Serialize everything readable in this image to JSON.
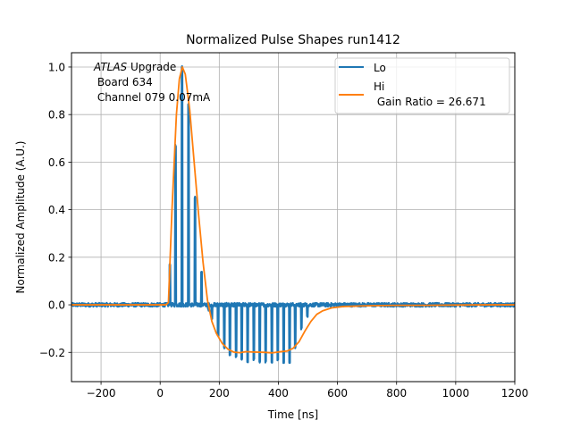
{
  "chart_data": {
    "type": "line",
    "title": "Normalized Pulse Shapes run1412",
    "xlabel": "Time [ns]",
    "ylabel": "Normalized Amplitude (A.U.)",
    "xlim": [
      -300,
      1200
    ],
    "ylim": [
      -0.323,
      1.06
    ],
    "xticks": [
      -200,
      0,
      200,
      400,
      600,
      800,
      1000,
      1200
    ],
    "xtick_labels": [
      "−200",
      "0",
      "200",
      "400",
      "600",
      "800",
      "1000",
      "1200"
    ],
    "yticks": [
      -0.2,
      0.0,
      0.2,
      0.4,
      0.6,
      0.8,
      1.0
    ],
    "ytick_labels": [
      "−0.2",
      "0.0",
      "0.2",
      "0.4",
      "0.6",
      "0.8",
      "1.0"
    ],
    "grid": true,
    "legend_position": "top-right",
    "annotation": {
      "italic": "ATLAS",
      "line1_rest": " Upgrade",
      "line2": " Board 634",
      "line3": " Channel 079 0.07mA"
    },
    "series": [
      {
        "name": "Lo",
        "color": "#1f77b4",
        "kind": "spikes",
        "baseline": 0.0,
        "noise": 0.008,
        "x_range": [
          -300,
          1200
        ],
        "spikes": [
          {
            "x": 33,
            "y": 0.17
          },
          {
            "x": 52,
            "y": 0.67
          },
          {
            "x": 74,
            "y": 1.0
          },
          {
            "x": 96,
            "y": 0.84
          },
          {
            "x": 118,
            "y": 0.45
          },
          {
            "x": 140,
            "y": 0.14
          },
          {
            "x": 163,
            "y": -0.02
          },
          {
            "x": 175,
            "y": -0.06
          },
          {
            "x": 196,
            "y": -0.13
          },
          {
            "x": 217,
            "y": -0.18
          },
          {
            "x": 236,
            "y": -0.21
          },
          {
            "x": 257,
            "y": -0.22
          },
          {
            "x": 276,
            "y": -0.23
          },
          {
            "x": 296,
            "y": -0.24
          },
          {
            "x": 317,
            "y": -0.23
          },
          {
            "x": 337,
            "y": -0.24
          },
          {
            "x": 357,
            "y": -0.24
          },
          {
            "x": 378,
            "y": -0.24
          },
          {
            "x": 398,
            "y": -0.23
          },
          {
            "x": 418,
            "y": -0.24
          },
          {
            "x": 438,
            "y": -0.24
          },
          {
            "x": 457,
            "y": -0.18
          },
          {
            "x": 478,
            "y": -0.1
          },
          {
            "x": 498,
            "y": -0.05
          }
        ]
      },
      {
        "name": "Hi\n Gain Ratio = 26.671",
        "color": "#ff7f0e",
        "kind": "line",
        "x": [
          -300,
          -200,
          -100,
          0,
          20,
          28,
          40,
          55,
          65,
          75,
          85,
          100,
          115,
          130,
          145,
          160,
          175,
          190,
          210,
          230,
          250,
          270,
          290,
          320,
          350,
          380,
          410,
          430,
          450,
          470,
          490,
          510,
          530,
          550,
          580,
          620,
          700,
          800,
          900,
          1000,
          1100,
          1200
        ],
        "y": [
          0.0,
          0.0,
          0.0,
          0.0,
          0.0,
          0.01,
          0.4,
          0.8,
          0.95,
          1.0,
          0.97,
          0.82,
          0.6,
          0.38,
          0.18,
          0.02,
          -0.07,
          -0.12,
          -0.16,
          -0.185,
          -0.197,
          -0.2,
          -0.2,
          -0.2,
          -0.197,
          -0.2,
          -0.198,
          -0.195,
          -0.185,
          -0.155,
          -0.11,
          -0.07,
          -0.04,
          -0.025,
          -0.013,
          -0.007,
          -0.004,
          -0.002,
          -0.002,
          -0.001,
          0.0,
          0.0
        ]
      }
    ],
    "legend": [
      {
        "label": "Lo",
        "color": "#1f77b4"
      },
      {
        "label_line1": "Hi",
        "label_line2": " Gain Ratio = 26.671",
        "color": "#ff7f0e"
      }
    ]
  }
}
